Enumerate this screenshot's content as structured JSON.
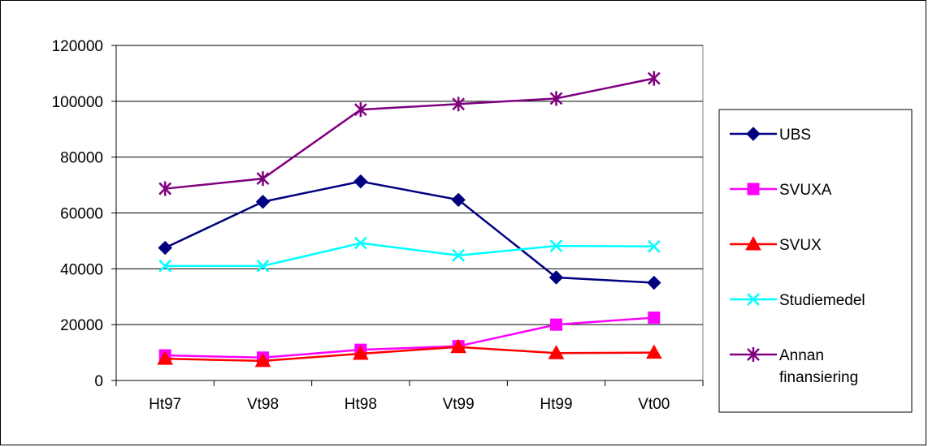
{
  "chart_data": {
    "type": "line",
    "categories": [
      "Ht97",
      "Vt98",
      "Ht98",
      "Vt99",
      "Ht99",
      "Vt00"
    ],
    "ylim": [
      0,
      120000
    ],
    "yticks": [
      0,
      20000,
      40000,
      60000,
      80000,
      100000,
      120000
    ],
    "grid": true,
    "legend_position": "right",
    "series": [
      {
        "name": "UBS",
        "color": "#000080",
        "marker": "diamond",
        "values": [
          47500,
          64000,
          71300,
          64700,
          36900,
          35000
        ]
      },
      {
        "name": "SVUXA",
        "color": "#ff00ff",
        "marker": "square",
        "values": [
          9000,
          8200,
          11000,
          12300,
          20000,
          22500
        ]
      },
      {
        "name": "SVUX",
        "color": "#ff0000",
        "marker": "triangle",
        "values": [
          7800,
          7000,
          9600,
          12000,
          9800,
          10000
        ]
      },
      {
        "name": "Studiemedel",
        "color": "#00ffff",
        "marker": "x",
        "values": [
          41000,
          41000,
          49200,
          44800,
          48200,
          48000
        ]
      },
      {
        "name": "Annan finansiering",
        "name_lines": [
          "Annan",
          "finansiering"
        ],
        "color": "#800080",
        "marker": "star",
        "values": [
          68700,
          72300,
          97000,
          99000,
          101000,
          108200
        ]
      }
    ]
  }
}
